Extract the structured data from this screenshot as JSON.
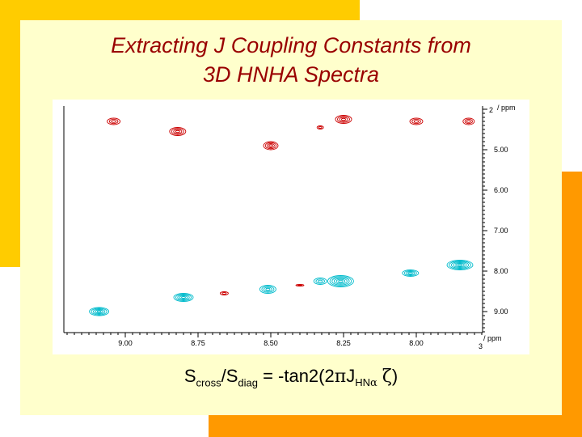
{
  "slide": {
    "title_line1": "Extracting J Coupling Constants from",
    "title_line2": "3D HNHA Spectra",
    "colors": {
      "panel": "#ffffcc",
      "accent_yellow": "#ffcc00",
      "accent_orange": "#ff9900",
      "title": "#990000",
      "cross_peak": "#cc0000",
      "diag_peak": "#00bbcc"
    }
  },
  "formula": {
    "s": "S",
    "cross": "cross",
    "slash": "/S",
    "diag": "diag",
    "eq": " = -tan2(2",
    "pi": "π",
    "j": "J",
    "hn": "HN",
    "alpha": "α",
    "space": " ",
    "zeta": "ζ",
    "close": ")"
  },
  "spectrum": {
    "x_unit": "ppm",
    "y_unit": "ppm",
    "x_ticks": [
      "9.00",
      "8.75",
      "8.50",
      "8.25",
      "8.00"
    ],
    "y_ticks": [
      "5.00",
      "6.00",
      "7.00",
      "8.00",
      "9.00"
    ],
    "x_end_label": "3",
    "y_top_label": "2",
    "peaks": [
      {
        "x": 9.04,
        "y": 4.3,
        "rx": 8,
        "ry": 4,
        "type": "cross"
      },
      {
        "x": 8.82,
        "y": 4.55,
        "rx": 10,
        "ry": 5,
        "type": "cross"
      },
      {
        "x": 8.5,
        "y": 4.9,
        "rx": 9,
        "ry": 5,
        "type": "cross"
      },
      {
        "x": 8.33,
        "y": 4.45,
        "rx": 4,
        "ry": 2,
        "type": "cross"
      },
      {
        "x": 8.25,
        "y": 4.25,
        "rx": 10,
        "ry": 5,
        "type": "cross"
      },
      {
        "x": 8.0,
        "y": 4.3,
        "rx": 8,
        "ry": 4,
        "type": "cross"
      },
      {
        "x": 7.82,
        "y": 4.3,
        "rx": 7,
        "ry": 4,
        "type": "cross"
      },
      {
        "x": 8.66,
        "y": 8.55,
        "rx": 5,
        "ry": 2,
        "type": "cross"
      },
      {
        "x": 8.4,
        "y": 8.35,
        "rx": 5,
        "ry": 1,
        "type": "cross"
      },
      {
        "x": 9.09,
        "y": 9.0,
        "rx": 12,
        "ry": 5,
        "type": "diag"
      },
      {
        "x": 8.8,
        "y": 8.65,
        "rx": 12,
        "ry": 5,
        "type": "diag"
      },
      {
        "x": 8.51,
        "y": 8.45,
        "rx": 10,
        "ry": 5,
        "type": "diag"
      },
      {
        "x": 8.26,
        "y": 8.25,
        "rx": 16,
        "ry": 7,
        "type": "diag"
      },
      {
        "x": 8.33,
        "y": 8.25,
        "rx": 8,
        "ry": 4,
        "type": "diag"
      },
      {
        "x": 8.02,
        "y": 8.05,
        "rx": 10,
        "ry": 4,
        "type": "diag"
      },
      {
        "x": 7.85,
        "y": 7.85,
        "rx": 16,
        "ry": 6,
        "type": "diag"
      }
    ]
  }
}
